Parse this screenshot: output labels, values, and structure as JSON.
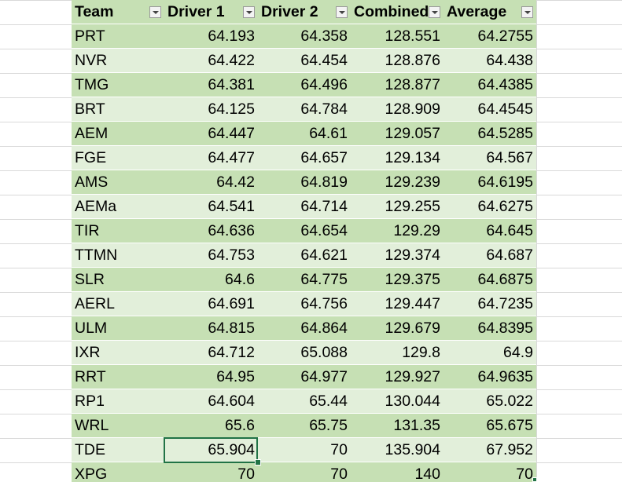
{
  "table": {
    "headers": [
      "Team",
      "Driver 1",
      "Driver 2",
      "Combined",
      "Average"
    ],
    "rows": [
      [
        "PRT",
        "64.193",
        "64.358",
        "128.551",
        "64.2755"
      ],
      [
        "NVR",
        "64.422",
        "64.454",
        "128.876",
        "64.438"
      ],
      [
        "TMG",
        "64.381",
        "64.496",
        "128.877",
        "64.4385"
      ],
      [
        "BRT",
        "64.125",
        "64.784",
        "128.909",
        "64.4545"
      ],
      [
        "AEM",
        "64.447",
        "64.61",
        "129.057",
        "64.5285"
      ],
      [
        "FGE",
        "64.477",
        "64.657",
        "129.134",
        "64.567"
      ],
      [
        "AMS",
        "64.42",
        "64.819",
        "129.239",
        "64.6195"
      ],
      [
        "AEMa",
        "64.541",
        "64.714",
        "129.255",
        "64.6275"
      ],
      [
        "TIR",
        "64.636",
        "64.654",
        "129.29",
        "64.645"
      ],
      [
        "TTMN",
        "64.753",
        "64.621",
        "129.374",
        "64.687"
      ],
      [
        "SLR",
        "64.6",
        "64.775",
        "129.375",
        "64.6875"
      ],
      [
        "AERL",
        "64.691",
        "64.756",
        "129.447",
        "64.7235"
      ],
      [
        "ULM",
        "64.815",
        "64.864",
        "129.679",
        "64.8395"
      ],
      [
        "IXR",
        "64.712",
        "65.088",
        "129.8",
        "64.9"
      ],
      [
        "RRT",
        "64.95",
        "64.977",
        "129.927",
        "64.9635"
      ],
      [
        "RP1",
        "64.604",
        "65.44",
        "130.044",
        "65.022"
      ],
      [
        "WRL",
        "65.6",
        "65.75",
        "131.35",
        "65.675"
      ],
      [
        "TDE",
        "65.904",
        "70",
        "135.904",
        "67.952"
      ],
      [
        "XPG",
        "70",
        "70",
        "140",
        "70"
      ]
    ]
  }
}
